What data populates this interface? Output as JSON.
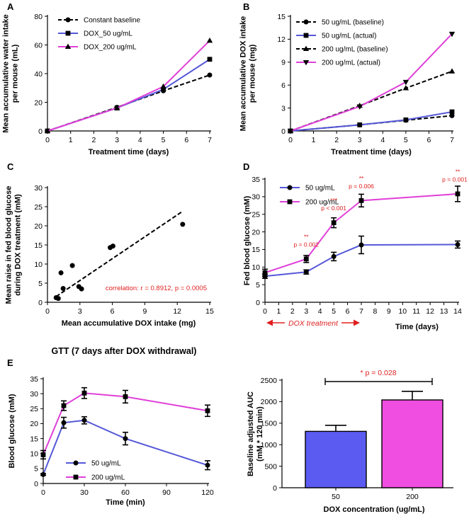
{
  "colors": {
    "black": "#000000",
    "blue": "#5558d8",
    "magenta": "#e040d8",
    "red": "#e02020",
    "bar_blue": "#5b5bf2",
    "bar_pink": "#f04ee0"
  },
  "chart_data": [
    {
      "id": "A",
      "panel": "A",
      "type": "line",
      "xlabel": "Treatment time (days)",
      "ylabel": [
        "Mean accumulative water intake",
        "per mouse (mL)"
      ],
      "xlim": [
        0,
        7
      ],
      "ylim": [
        0,
        80
      ],
      "xticks": [
        0,
        1,
        2,
        3,
        4,
        5,
        6,
        7
      ],
      "yticks": [
        0,
        20,
        40,
        60,
        80
      ],
      "legend_position": "top-left",
      "series": [
        {
          "name": "Constant baseline",
          "color": "#000000",
          "dash": true,
          "marker": "circle",
          "x": [
            0,
            3,
            5,
            7
          ],
          "y": [
            0,
            16.5,
            28,
            39
          ]
        },
        {
          "name": "DOX_50 ug/mL",
          "color": "#5558d8",
          "dash": false,
          "marker": "square",
          "x": [
            0,
            3,
            5,
            7
          ],
          "y": [
            0,
            16,
            29,
            50
          ]
        },
        {
          "name": "DOX_200 ug/mL",
          "color": "#e040d8",
          "dash": false,
          "marker": "triangle",
          "x": [
            0,
            3,
            5,
            7
          ],
          "y": [
            0,
            16,
            31,
            63
          ]
        }
      ]
    },
    {
      "id": "B",
      "panel": "B",
      "type": "line",
      "xlabel": "Treatment time (days)",
      "ylabel": [
        "Mean accumulative DOX intake",
        "per mouse (mg)"
      ],
      "xlim": [
        0,
        7
      ],
      "ylim": [
        0,
        15
      ],
      "xticks": [
        0,
        1,
        2,
        3,
        4,
        5,
        6,
        7
      ],
      "yticks": [
        0,
        3,
        6,
        9,
        12,
        15
      ],
      "legend_position": "top-left",
      "series": [
        {
          "name": "50 ug/mL (baseline)",
          "color": "#000000",
          "dash": true,
          "marker": "circle",
          "x": [
            0,
            3,
            5,
            7
          ],
          "y": [
            0,
            0.8,
            1.4,
            2.0
          ]
        },
        {
          "name": "50 ug/mL (actual)",
          "color": "#5558d8",
          "dash": false,
          "marker": "square",
          "x": [
            0,
            3,
            5,
            7
          ],
          "y": [
            0,
            0.8,
            1.45,
            2.5
          ]
        },
        {
          "name": "200 ug/mL (baseline)",
          "color": "#000000",
          "dash": true,
          "marker": "triangle",
          "x": [
            0,
            3,
            5,
            7
          ],
          "y": [
            0,
            3.3,
            5.6,
            7.8
          ]
        },
        {
          "name": "200 ug/mL (actual)",
          "color": "#e040d8",
          "dash": false,
          "marker": "triangle-down",
          "x": [
            0,
            3,
            5,
            7
          ],
          "y": [
            0,
            3.2,
            6.4,
            12.7
          ]
        }
      ]
    },
    {
      "id": "C",
      "panel": "C",
      "type": "scatter",
      "xlabel": "Mean accumulative DOX intake (mg)",
      "ylabel": [
        "Mean raise in fed blood glucose",
        "during DOX treatment (mM)"
      ],
      "xlim": [
        0,
        15
      ],
      "ylim": [
        0,
        30
      ],
      "xticks": [
        0,
        3,
        6,
        9,
        12,
        15
      ],
      "yticks": [
        0,
        5,
        10,
        15,
        20,
        25,
        30
      ],
      "points": {
        "x": [
          0.8,
          1.0,
          1.25,
          1.45,
          2.3,
          2.9,
          3.15,
          5.8,
          6.05,
          12.5
        ],
        "y": [
          1.2,
          1.0,
          7.7,
          3.6,
          9.6,
          4.1,
          3.5,
          14.3,
          14.7,
          20.4
        ]
      },
      "fit_line": {
        "x": [
          0.8,
          12.5
        ],
        "y": [
          1.5,
          23.8
        ]
      },
      "annotation": "correlation: r = 0.8912, p = 0.0005"
    },
    {
      "id": "D",
      "panel": "D",
      "type": "line",
      "xlabel": "Time (days)",
      "ylabel": [
        "Fed blood glucose (mM)"
      ],
      "xlim": [
        0,
        14
      ],
      "ylim": [
        0,
        35
      ],
      "xticks": [
        0,
        1,
        2,
        3,
        4,
        5,
        6,
        7,
        8,
        9,
        10,
        11,
        12,
        13,
        14
      ],
      "yticks": [
        0,
        5,
        10,
        15,
        20,
        25,
        30,
        35
      ],
      "legend_position": "top-left",
      "series": [
        {
          "name": "50 ug/mL",
          "color": "#5558d8",
          "marker": "circle",
          "x": [
            0,
            3,
            5,
            7,
            14
          ],
          "y": [
            7.4,
            8.6,
            13.0,
            16.3,
            16.4
          ],
          "err": [
            0.6,
            0.6,
            1.2,
            2.5,
            1.0
          ]
        },
        {
          "name": "200 ug/mL",
          "color": "#e040d8",
          "marker": "square",
          "x": [
            0,
            3,
            5,
            7,
            14
          ],
          "y": [
            8.4,
            12.3,
            22.6,
            28.9,
            30.8
          ],
          "err": [
            1.0,
            1.0,
            1.4,
            1.8,
            2.2
          ]
        }
      ],
      "annotations": [
        {
          "stars": "**",
          "text": "p = 0.002",
          "x": 3,
          "y": 12.3
        },
        {
          "stars": "***",
          "text": "p < 0.001",
          "x": 5,
          "y": 22.6
        },
        {
          "stars": "**",
          "text": "p = 0.006",
          "x": 7,
          "y": 28.9
        },
        {
          "stars": "**",
          "text": "p = 0.001",
          "x": 14,
          "y": 30.8
        }
      ],
      "treatment_label": "DOX treatment"
    },
    {
      "id": "E1",
      "panel": "E",
      "type": "line",
      "title": "GTT (7 days after DOX withdrawal)",
      "xlabel": "Time (min)",
      "ylabel": [
        "Blood glucose (mM)"
      ],
      "xlim": [
        0,
        120
      ],
      "ylim": [
        0,
        35
      ],
      "xticks": [
        0,
        30,
        60,
        90,
        120
      ],
      "yticks": [
        0,
        5,
        10,
        15,
        20,
        25,
        30,
        35
      ],
      "legend_position": "bottom-left",
      "series": [
        {
          "name": "50 ug/mL",
          "color": "#5558d8",
          "marker": "circle",
          "x": [
            0,
            15,
            30,
            60,
            120
          ],
          "y": [
            3.0,
            20.3,
            21.1,
            15.0,
            6.1
          ],
          "err": [
            0.3,
            1.8,
            1.2,
            2.1,
            1.5
          ]
        },
        {
          "name": "200 ug/mL",
          "color": "#e040d8",
          "marker": "square",
          "x": [
            0,
            15,
            30,
            60,
            120
          ],
          "y": [
            9.6,
            26.0,
            30.2,
            29.0,
            24.3
          ],
          "err": [
            1.4,
            1.6,
            1.8,
            2.1,
            1.9
          ]
        }
      ]
    },
    {
      "id": "E2",
      "panel": "E",
      "type": "bar",
      "xlabel": "DOX concentration (ug/mL)",
      "ylabel": [
        "Baseline adjusted AUC",
        "(mM * 120 min)"
      ],
      "ylim": [
        0,
        2500
      ],
      "yticks": [
        0,
        500,
        1000,
        1500,
        2000,
        2500
      ],
      "categories": [
        "50",
        "200"
      ],
      "values": [
        1310,
        2040
      ],
      "err": [
        140,
        200
      ],
      "bar_colors": [
        "#5b5bf2",
        "#f04ee0"
      ],
      "significance": "* p = 0.028"
    }
  ]
}
